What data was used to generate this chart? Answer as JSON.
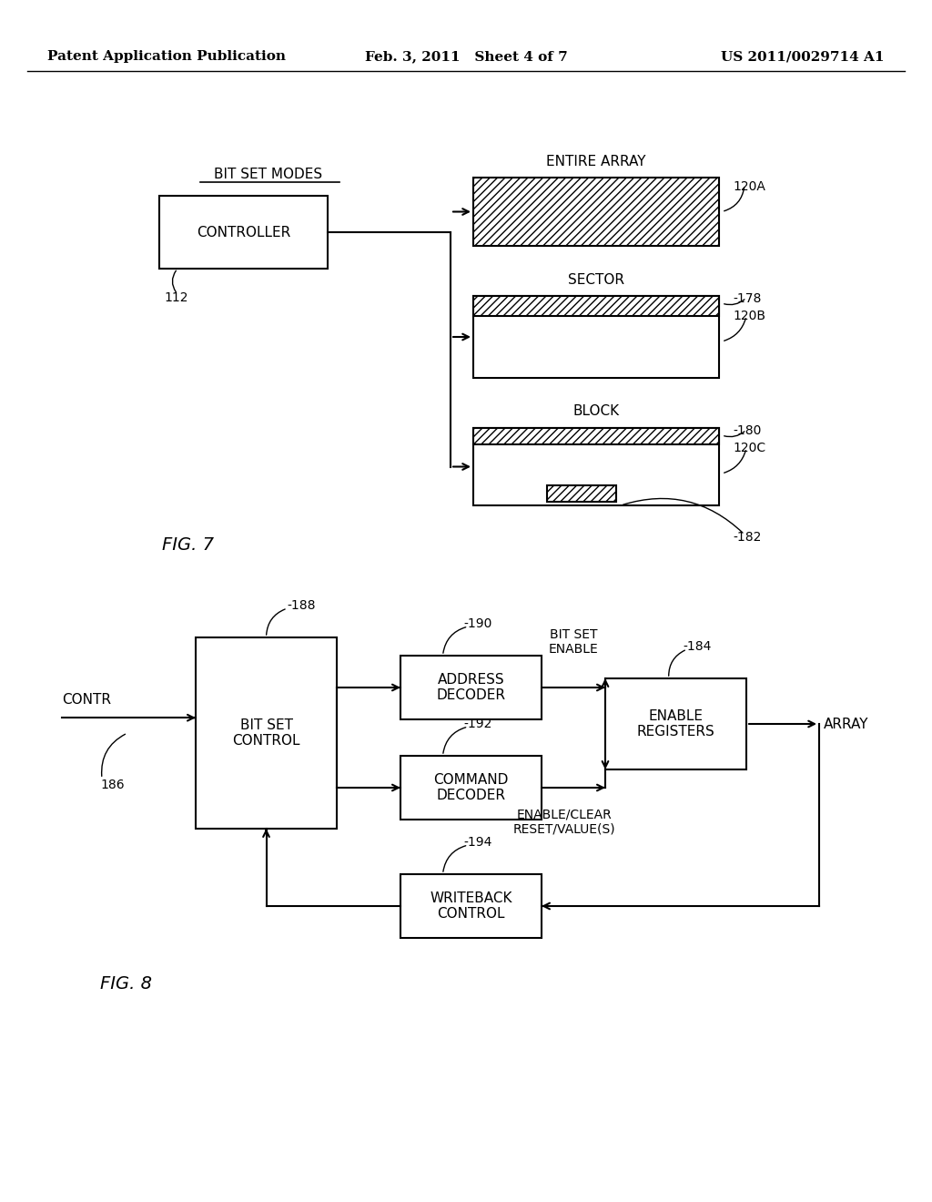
{
  "bg_color": "#ffffff",
  "header_left": "Patent Application Publication",
  "header_center": "Feb. 3, 2011   Sheet 4 of 7",
  "header_right": "US 2011/0029714 A1",
  "fig7_label": "FIG. 7",
  "fig8_label": "FIG. 8",
  "controller_label": "CONTROLLER",
  "controller_ref": "112",
  "bit_set_modes_label": "BIT SET MODES",
  "entire_array_label": "ENTIRE ARRAY",
  "sector_label": "SECTOR",
  "block_label": "BLOCK",
  "ref_120a": "120A",
  "ref_178": "-178",
  "ref_120b": "120B",
  "ref_180": "-180",
  "ref_120c": "120C",
  "ref_182": "-182",
  "bsc_label": "BIT SET\nCONTROL",
  "addr_dec_label": "ADDRESS\nDECODER",
  "cmd_dec_label": "COMMAND\nDECODER",
  "enable_reg_label": "ENABLE\nREGISTERS",
  "writeback_label": "WRITEBACK\nCONTROL",
  "ref_188": "-188",
  "ref_190": "-190",
  "ref_192": "-192",
  "ref_184": "-184",
  "ref_186": "186",
  "ref_194": "-194",
  "contr_label": "CONTR",
  "array_label": "ARRAY",
  "bit_set_enable_label": "BIT SET\nENABLE",
  "enable_clear_label": "ENABLE/CLEAR\nRESET/VALUE(S)"
}
